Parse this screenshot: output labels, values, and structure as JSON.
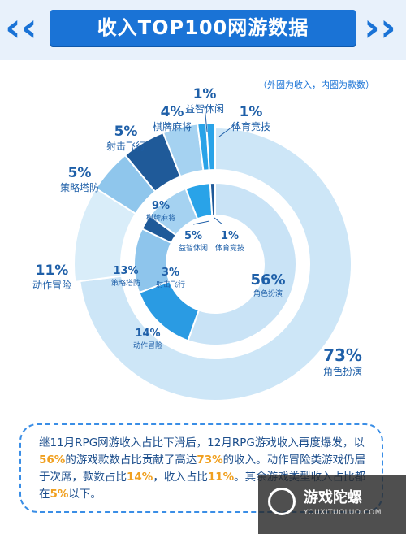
{
  "banner": {
    "title": "收入TOP100网游数据"
  },
  "note": "（外圈为收入，内圈为款数）",
  "chart_data": {
    "type": "pie",
    "title": "收入TOP100网游数据",
    "rings": [
      {
        "name": "收入",
        "slices": [
          {
            "label": "角色扮演",
            "pct": "73%",
            "value": 73,
            "color": "#cde6f7"
          },
          {
            "label": "动作冒险",
            "pct": "11%",
            "value": 11,
            "color": "#d9edf9"
          },
          {
            "label": "策略塔防",
            "pct": "5%",
            "value": 5,
            "color": "#8fc6ec"
          },
          {
            "label": "射击飞行",
            "pct": "5%",
            "value": 5,
            "color": "#1f5a99"
          },
          {
            "label": "棋牌麻将",
            "pct": "4%",
            "value": 4,
            "color": "#a5d2f1"
          },
          {
            "label": "益智休闲",
            "pct": "1%",
            "value": 1,
            "color": "#29a3e8"
          },
          {
            "label": "体育竞技",
            "pct": "1%",
            "value": 1,
            "color": "#29a3e8"
          }
        ]
      },
      {
        "name": "款数",
        "slices": [
          {
            "label": "角色扮演",
            "pct": "56%",
            "value": 56,
            "color": "#c9e3f6"
          },
          {
            "label": "动作冒险",
            "pct": "14%",
            "value": 14,
            "color": "#2a9be3"
          },
          {
            "label": "策略塔防",
            "pct": "13%",
            "value": 13,
            "color": "#8ec5ec"
          },
          {
            "label": "射击飞行",
            "pct": "3%",
            "value": 3,
            "color": "#1f5a99"
          },
          {
            "label": "棋牌麻将",
            "pct": "9%",
            "value": 9,
            "color": "#a5d2f1"
          },
          {
            "label": "益智休闲",
            "pct": "5%",
            "value": 5,
            "color": "#29a3e8"
          },
          {
            "label": "体育竞技",
            "pct": "1%",
            "value": 1,
            "color": "#1f5a99"
          }
        ]
      }
    ]
  },
  "summary": {
    "p1": "继11月RPG网游收入占比下滑后，12月RPG游戏收入再度爆发，以",
    "h1": "56%",
    "p2": "的游戏款数占比贡献了高达",
    "h2": "73%",
    "p3": "的收入。动作冒险类游戏仍居于次席，款数占比",
    "h3": "14%",
    "p4": "，收入占比",
    "h4": "11%",
    "p5": "。其余游戏类型收入占比都在",
    "h5": "5%",
    "p6": "以下。"
  },
  "watermark": {
    "name": "游戏陀螺",
    "site": "YOUXITUOLUO.COM"
  }
}
